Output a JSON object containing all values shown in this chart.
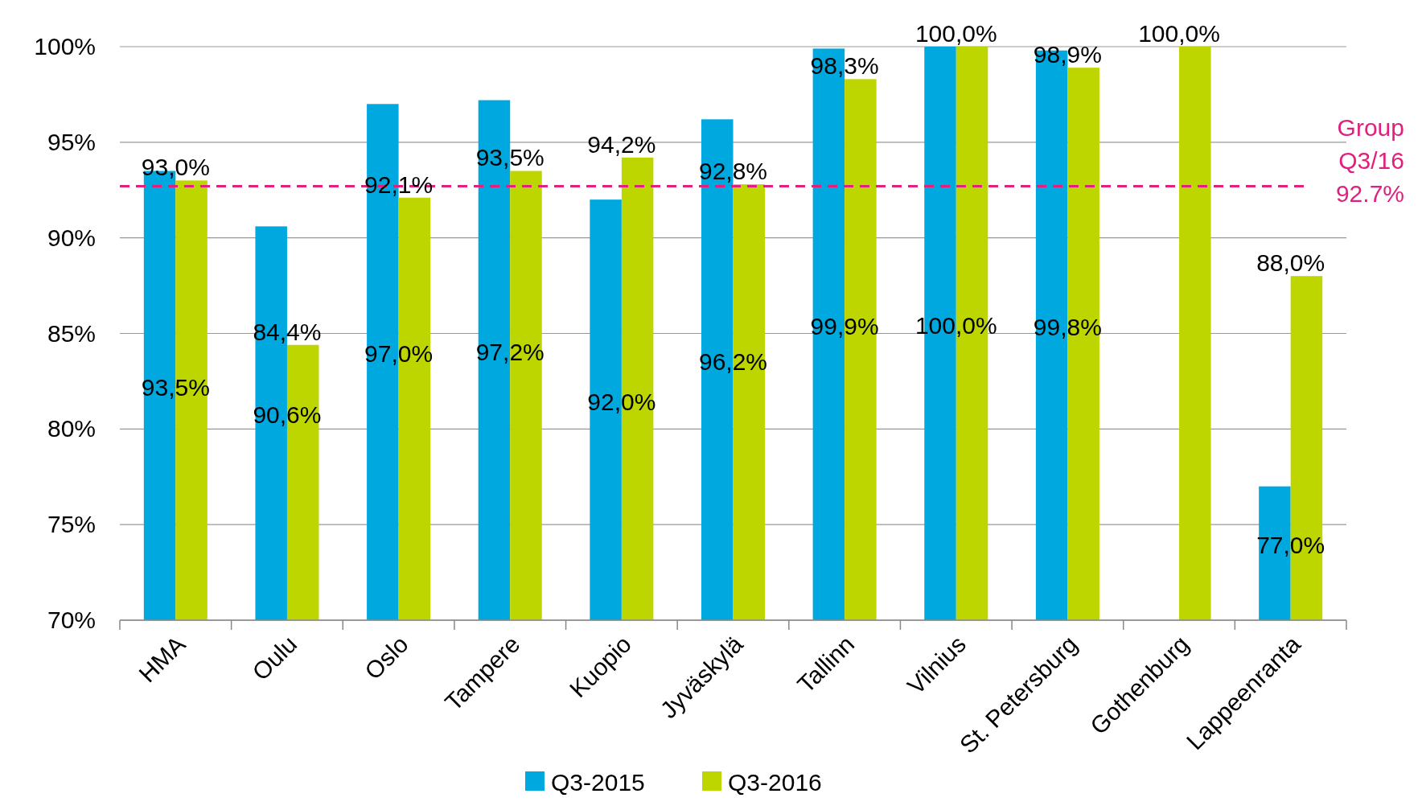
{
  "chart_data": {
    "type": "bar",
    "categories": [
      "HMA",
      "Oulu",
      "Oslo",
      "Tampere",
      "Kuopio",
      "Jyväskylä",
      "Tallinn",
      "Vilnius",
      "St. Petersburg",
      "Gothenburg",
      "Lappeenranta"
    ],
    "series": [
      {
        "name": "Q3-2015",
        "color": "#00a8e0",
        "values": [
          93.5,
          90.6,
          97.0,
          97.2,
          92.0,
          96.2,
          99.9,
          100.0,
          99.8,
          null,
          77.0
        ],
        "value_labels": [
          "93,5%",
          "90,6%",
          "97,0%",
          "97,2%",
          "92,0%",
          "96,2%",
          "99,9%",
          "100,0%",
          "99,8%",
          null,
          "77,0%"
        ]
      },
      {
        "name": "Q3-2016",
        "color": "#bed600",
        "values": [
          93.0,
          84.4,
          92.1,
          93.5,
          94.2,
          92.8,
          98.3,
          100.0,
          98.9,
          100.0,
          88.0
        ],
        "value_labels": [
          "93,0%",
          "84,4%",
          "92,1%",
          "93,5%",
          "94,2%",
          "92,8%",
          "98,3%",
          "100,0%",
          "98,9%",
          "100,0%",
          "88,0%"
        ]
      }
    ],
    "ylim": [
      70,
      100
    ],
    "yticks": [
      {
        "value": 70,
        "label": "70%"
      },
      {
        "value": 75,
        "label": "75%"
      },
      {
        "value": 80,
        "label": "80%"
      },
      {
        "value": 85,
        "label": "85%"
      },
      {
        "value": 90,
        "label": "90%"
      },
      {
        "value": 95,
        "label": "95%"
      },
      {
        "value": 100,
        "label": "100%"
      }
    ],
    "grid": "y",
    "legend": "bottom",
    "ref_lines": [
      {
        "axis": "y",
        "value": 92.7,
        "label": "Group Q3/16 92.7%",
        "color": "#e0207f",
        "line_style": "dashed"
      }
    ]
  }
}
